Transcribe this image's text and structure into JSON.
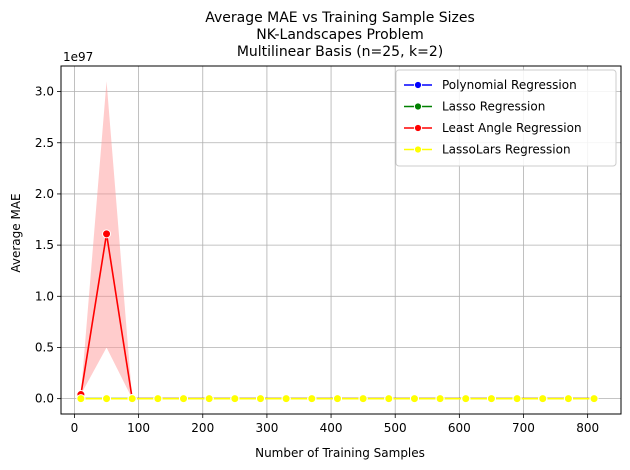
{
  "chart_data": {
    "type": "line",
    "title_lines": [
      "Average MAE vs Training Sample Sizes",
      "NK-Landscapes Problem",
      "Multilinear Basis (n=25, k=2)"
    ],
    "xlabel": "Number of Training Samples",
    "ylabel": "Average MAE",
    "y_offset_text": "1e97",
    "xlim": [
      -21,
      852
    ],
    "ylim": [
      -0.15,
      3.25
    ],
    "x_ticks": [
      0,
      100,
      200,
      300,
      400,
      500,
      600,
      700,
      800
    ],
    "y_ticks": [
      0.0,
      0.5,
      1.0,
      1.5,
      2.0,
      2.5,
      3.0
    ],
    "x_tick_labels": [
      "0",
      "100",
      "200",
      "300",
      "400",
      "500",
      "600",
      "700",
      "800"
    ],
    "y_tick_labels": [
      "0.0",
      "0.5",
      "1.0",
      "1.5",
      "2.0",
      "2.5",
      "3.0"
    ],
    "grid": true,
    "legend_position": "top-right",
    "x": [
      10,
      50,
      90,
      130,
      170,
      210,
      250,
      290,
      330,
      370,
      410,
      450,
      490,
      530,
      570,
      610,
      650,
      690,
      730,
      770,
      810
    ],
    "series": [
      {
        "name": "Polynomial Regression",
        "color": "#0000ff",
        "values": [
          0,
          0,
          0,
          0,
          0,
          0,
          0,
          0,
          0,
          0,
          0,
          0,
          0,
          0,
          0,
          0,
          0,
          0,
          0,
          0,
          0
        ]
      },
      {
        "name": "Lasso Regression",
        "color": "#008000",
        "values": [
          0,
          0,
          0,
          0,
          0,
          0,
          0,
          0,
          0,
          0,
          0,
          0,
          0,
          0,
          0,
          0,
          0,
          0,
          0,
          0,
          0
        ]
      },
      {
        "name": "Least Angle Regression",
        "color": "#ff0000",
        "values": [
          0.04,
          1.61,
          0,
          0,
          0,
          0,
          0,
          0,
          0,
          0,
          0,
          0,
          0,
          0,
          0,
          0,
          0,
          0,
          0,
          0,
          0
        ],
        "band": {
          "color": "#ff9999",
          "lower": [
            0.04,
            0.5,
            0,
            0,
            0,
            0,
            0,
            0,
            0,
            0,
            0,
            0,
            0,
            0,
            0,
            0,
            0,
            0,
            0,
            0,
            0
          ],
          "upper": [
            0.04,
            3.1,
            0,
            0,
            0,
            0,
            0,
            0,
            0,
            0,
            0,
            0,
            0,
            0,
            0,
            0,
            0,
            0,
            0,
            0,
            0
          ]
        }
      },
      {
        "name": "LassoLars Regression",
        "color": "#ffff00",
        "values": [
          0,
          0,
          0,
          0,
          0,
          0,
          0,
          0,
          0,
          0,
          0,
          0,
          0,
          0,
          0,
          0,
          0,
          0,
          0,
          0,
          0
        ]
      }
    ]
  }
}
